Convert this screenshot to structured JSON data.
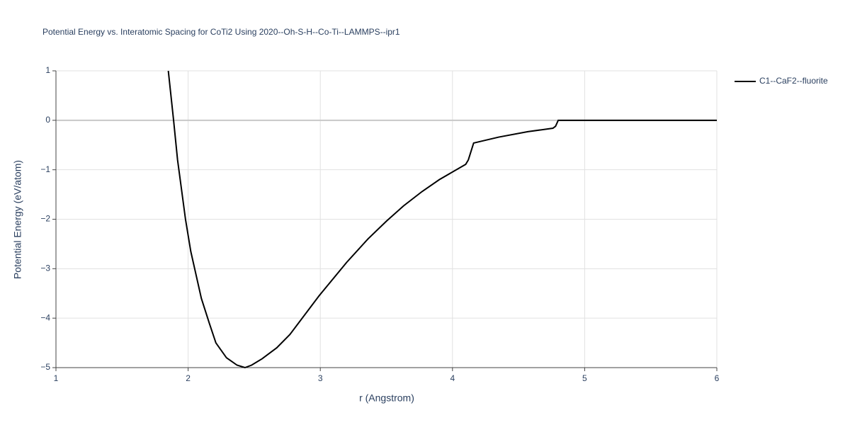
{
  "chart_data": {
    "type": "line",
    "title": "Potential Energy vs. Interatomic Spacing for CoTi2 Using 2020--Oh-S-H--Co-Ti--LAMMPS--ipr1",
    "x_label": "r (Angstrom)",
    "y_label": "Potential Energy (eV/atom)",
    "xlim": [
      1,
      6
    ],
    "ylim": [
      -5,
      1
    ],
    "xticks": [
      1,
      2,
      3,
      4,
      5,
      6
    ],
    "yticks": [
      {
        "value": -5,
        "label": "−5"
      },
      {
        "value": -4,
        "label": "−4"
      },
      {
        "value": -3,
        "label": "−3"
      },
      {
        "value": -2,
        "label": "−2"
      },
      {
        "value": -1,
        "label": "−1"
      },
      0,
      1
    ],
    "grid": true,
    "legend": "right",
    "series": [
      {
        "name": "C1--CaF2--fluorite",
        "color": "#000000",
        "x": [
          1.85,
          1.89,
          1.92,
          1.98,
          2.02,
          2.1,
          2.16,
          2.21,
          2.29,
          2.37,
          2.43,
          2.48,
          2.56,
          2.67,
          2.77,
          2.99,
          3.2,
          3.36,
          3.5,
          3.63,
          3.77,
          3.9,
          4.1,
          4.12,
          4.16,
          4.35,
          4.57,
          4.76,
          4.78,
          4.8,
          6.0
        ],
        "values": [
          1.0,
          0.0,
          -0.8,
          -2.0,
          -2.65,
          -3.6,
          -4.1,
          -4.5,
          -4.8,
          -4.95,
          -5.0,
          -4.95,
          -4.82,
          -4.6,
          -4.33,
          -3.55,
          -2.87,
          -2.4,
          -2.04,
          -1.73,
          -1.44,
          -1.2,
          -0.89,
          -0.8,
          -0.46,
          -0.34,
          -0.23,
          -0.16,
          -0.12,
          0.0,
          0.0
        ]
      }
    ]
  }
}
